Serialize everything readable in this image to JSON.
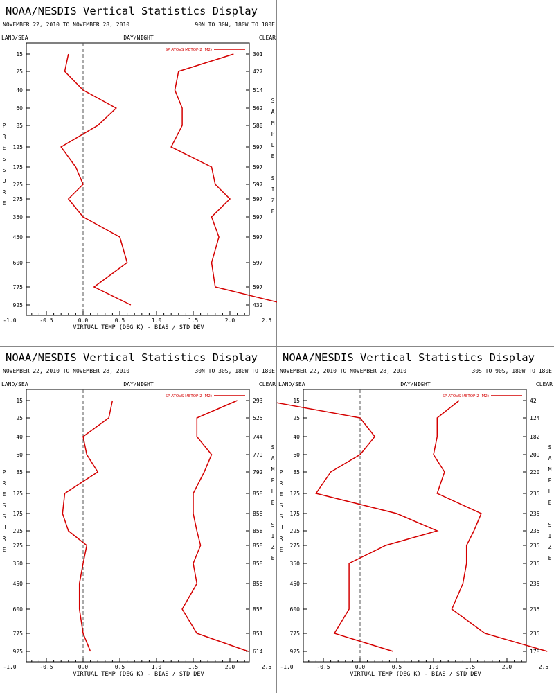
{
  "chart_data": [
    {
      "type": "line",
      "title": "NOAA/NESDIS Vertical Statistics Display",
      "date_range": "NOVEMBER 22, 2010 TO NOVEMBER 28, 2010",
      "region": "90N TO 30N, 180W TO 180E",
      "label_left": "LAND/SEA",
      "label_center": "DAY/NIGHT",
      "label_right": "CLEAR",
      "ylabel": "PRESSURE",
      "y2label": "SAMPLE SIZE",
      "xlabel": "VIRTUAL TEMP (DEG K) - BIAS / STD DEV",
      "xlim": [
        -1.5,
        4.5
      ],
      "xticks": [
        "-1.0",
        "-0.5",
        "0.0",
        "0.5",
        "1.0",
        "1.5",
        "2.0",
        "2.5",
        "3.0",
        "3.5",
        "4.0"
      ],
      "pressure_levels": [
        "15",
        "25",
        "40",
        "60",
        "85",
        "125",
        "175",
        "225",
        "275",
        "350",
        "450",
        "600",
        "775",
        "925"
      ],
      "sample_size": [
        "301",
        "427",
        "514",
        "562",
        "580",
        "597",
        "597",
        "597",
        "597",
        "597",
        "597",
        "597",
        "597",
        "432"
      ],
      "series": [
        {
          "name": "SP ATOVS METOP-2 (M2)",
          "role": "bias",
          "values": [
            -0.2,
            -0.25,
            0.0,
            0.45,
            0.2,
            -0.3,
            -0.1,
            0.0,
            -0.2,
            0.0,
            0.5,
            0.6,
            0.15,
            0.65
          ]
        },
        {
          "role": "std_dev",
          "values": [
            2.05,
            1.3,
            1.25,
            1.35,
            1.35,
            1.2,
            1.75,
            1.8,
            2.0,
            1.75,
            1.85,
            1.75,
            1.8,
            2.8
          ]
        }
      ],
      "legend": "top-right",
      "color": "#d40000"
    },
    {
      "type": "line",
      "title": "NOAA/NESDIS Vertical Statistics Display",
      "date_range": "NOVEMBER 22, 2010 TO NOVEMBER 28, 2010",
      "region": "30N TO 30S, 180W TO 180E",
      "label_left": "LAND/SEA",
      "label_center": "DAY/NIGHT",
      "label_right": "CLEAR",
      "ylabel": "PRESSURE",
      "y2label": "SAMPLE SIZE",
      "xlabel": "VIRTUAL TEMP (DEG K) - BIAS / STD DEV",
      "xlim": [
        -1.5,
        4.5
      ],
      "xticks": [
        "-1.0",
        "-0.5",
        "0.0",
        "0.5",
        "1.0",
        "1.5",
        "2.0",
        "2.5",
        "3.0",
        "3.5",
        "4.0"
      ],
      "pressure_levels": [
        "15",
        "25",
        "40",
        "60",
        "85",
        "125",
        "175",
        "225",
        "275",
        "350",
        "450",
        "600",
        "775",
        "925"
      ],
      "sample_size": [
        "293",
        "525",
        "744",
        "779",
        "792",
        "858",
        "858",
        "858",
        "858",
        "858",
        "858",
        "858",
        "851",
        "614"
      ],
      "series": [
        {
          "name": "SP ATOVS METOP-2 (M2)",
          "role": "bias",
          "values": [
            0.4,
            0.35,
            0.0,
            0.05,
            0.2,
            -0.25,
            -0.28,
            -0.2,
            0.05,
            0.0,
            -0.05,
            -0.05,
            0.0,
            0.1
          ]
        },
        {
          "role": "std_dev",
          "values": [
            2.1,
            1.55,
            1.55,
            1.75,
            1.65,
            1.5,
            1.5,
            1.55,
            1.6,
            1.5,
            1.55,
            1.35,
            1.55,
            2.25
          ]
        }
      ],
      "legend": "top-right",
      "color": "#d40000"
    },
    {
      "type": "line",
      "title": "NOAA/NESDIS Vertical Statistics Display",
      "date_range": "NOVEMBER 22, 2010 TO NOVEMBER 28, 2010",
      "region": "30S TO 90S, 180W TO 180E",
      "label_left": "LAND/SEA",
      "label_center": "DAY/NIGHT",
      "label_right": "CLEAR",
      "ylabel": "PRESSURE",
      "y2label": "SAMPLE SIZE",
      "xlabel": "VIRTUAL TEMP (DEG K) - BIAS / STD DEV",
      "xlim": [
        -1.5,
        4.5
      ],
      "xticks": [
        "-1.0",
        "-0.5",
        "0.0",
        "0.5",
        "1.0",
        "1.5",
        "2.0",
        "2.5",
        "3.0",
        "3.5",
        "4.0"
      ],
      "pressure_levels": [
        "15",
        "25",
        "40",
        "60",
        "85",
        "125",
        "175",
        "225",
        "275",
        "350",
        "450",
        "600",
        "775",
        "925"
      ],
      "sample_size": [
        "42",
        "124",
        "182",
        "209",
        "220",
        "235",
        "235",
        "235",
        "235",
        "235",
        "235",
        "235",
        "235",
        "178"
      ],
      "series": [
        {
          "name": "SP ATOVS METOP-2 (M2)",
          "role": "bias",
          "values": [
            -1.3,
            0.0,
            0.2,
            0.0,
            -0.4,
            -0.6,
            0.5,
            1.05,
            0.35,
            -0.15,
            -0.15,
            -0.15,
            -0.35,
            0.45
          ]
        },
        {
          "role": "std_dev",
          "values": [
            1.35,
            1.05,
            1.05,
            1.0,
            1.15,
            1.05,
            1.65,
            1.55,
            1.45,
            1.45,
            1.4,
            1.25,
            1.7,
            2.55
          ]
        }
      ],
      "legend": "top-right",
      "color": "#d40000"
    }
  ]
}
